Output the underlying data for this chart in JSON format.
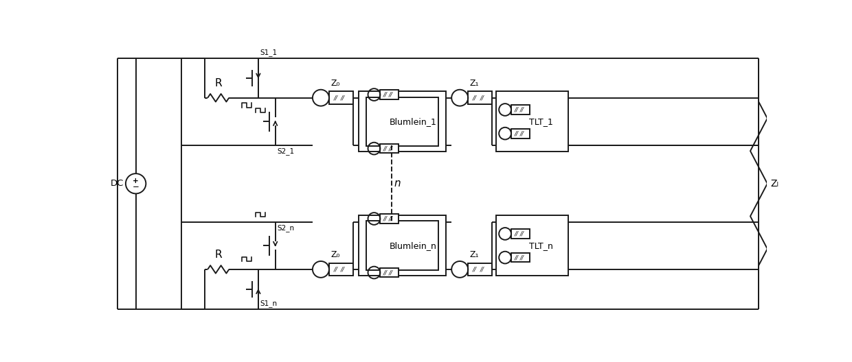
{
  "fig_width": 12.4,
  "fig_height": 5.28,
  "dpi": 100,
  "bg_color": "#ffffff",
  "line_color": "#1a1a1a",
  "line_width": 1.4,
  "labels": {
    "DC": "DC",
    "R": "R",
    "S1_1": "S1_1",
    "S2_1": "S2_1",
    "S1_n": "S1_n",
    "S2_n": "S2_n",
    "Z0": "Z₀",
    "Z1": "Z₁",
    "Blumlein_1": "Blumlein_1",
    "Blumlein_n": "Blumlein_n",
    "TLT_1": "TLT_1",
    "TLT_n": "TLT_n",
    "ZL": "Zₗ",
    "n": "n"
  },
  "Ytop": 50.0,
  "Ybot": 2.5,
  "Ytch": 42.5,
  "Ybch": 10.0,
  "Yts2": 33.5,
  "Ybs2": 19.0,
  "Xleft": 2.0,
  "Xright": 122.5,
  "Xdc": 5.5,
  "Xinner": 14.0
}
